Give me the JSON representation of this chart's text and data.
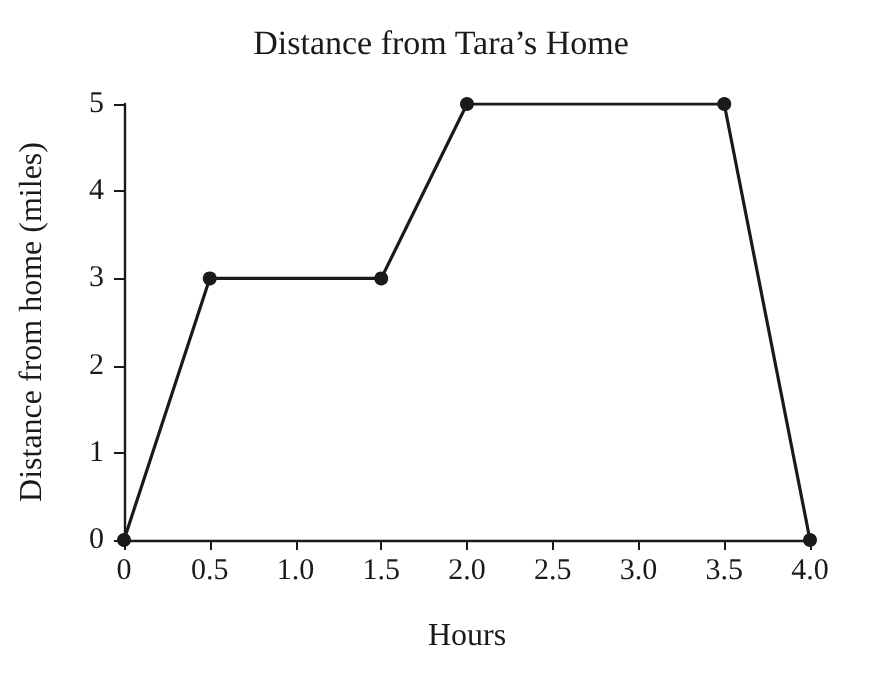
{
  "chart_data": {
    "type": "line",
    "title": "Distance from Tara’s Home",
    "xlabel": "Hours",
    "ylabel": "Distance from home (miles)",
    "x": [
      0,
      0.5,
      1.5,
      2,
      3.5,
      4
    ],
    "series": [
      {
        "color": "#1a1a1a",
        "values": [
          0,
          3,
          3,
          5,
          5,
          0
        ]
      }
    ],
    "xlim": [
      0,
      4
    ],
    "xticks": [
      0,
      0.5,
      {
        "value": 1,
        "label": "1.0"
      },
      1.5,
      {
        "value": 2,
        "label": "2.0"
      },
      2.5,
      {
        "value": 3,
        "label": "3.0"
      },
      3.5,
      {
        "value": 4,
        "label": "4.0"
      }
    ],
    "ylim": [
      0,
      5
    ],
    "yticks": [
      0,
      1,
      2,
      3,
      4,
      5
    ],
    "grid": false,
    "marker": "circle",
    "line_style": "solid"
  }
}
